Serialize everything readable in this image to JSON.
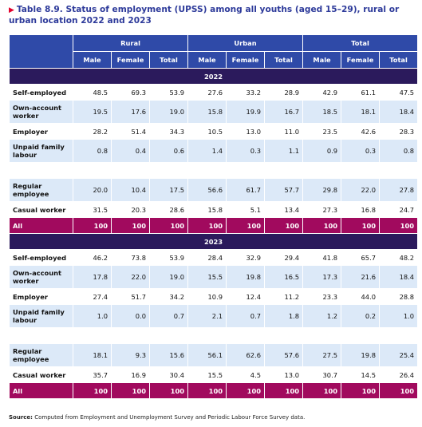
{
  "title": "Table 8.9. Status of employment (UPSS) among all youths (aged 15–29), rural or urban location 2022 and 2023",
  "columns": {
    "groups": [
      "Rural",
      "Urban",
      "Total"
    ],
    "sub": [
      "Male",
      "Female",
      "Total"
    ]
  },
  "sections": [
    {
      "year": "2022",
      "rows": [
        {
          "label": "Self-employed",
          "values": [
            "48.5",
            "69.3",
            "53.9",
            "27.6",
            "33.2",
            "28.9",
            "42.9",
            "61.1",
            "47.5"
          ]
        },
        {
          "label": "Own-account worker",
          "values": [
            "19.5",
            "17.6",
            "19.0",
            "15.8",
            "19.9",
            "16.7",
            "18.5",
            "18.1",
            "18.4"
          ]
        },
        {
          "label": "Employer",
          "values": [
            "28.2",
            "51.4",
            "34.3",
            "10.5",
            "13.0",
            "11.0",
            "23.5",
            "42.6",
            "28.3"
          ]
        },
        {
          "label": "Unpaid family labour",
          "values": [
            "0.8",
            "0.4",
            "0.6",
            "1.4",
            "0.3",
            "1.1",
            "0.9",
            "0.3",
            "0.8"
          ]
        },
        {
          "label": "",
          "values": [
            "",
            "",
            "",
            "",
            "",
            "",
            "",
            "",
            ""
          ]
        },
        {
          "label": "Regular employee",
          "values": [
            "20.0",
            "10.4",
            "17.5",
            "56.6",
            "61.7",
            "57.7",
            "29.8",
            "22.0",
            "27.8"
          ]
        },
        {
          "label": "Casual worker",
          "values": [
            "31.5",
            "20.3",
            "28.6",
            "15.8",
            "5.1",
            "13.4",
            "27.3",
            "16.8",
            "24.7"
          ]
        }
      ],
      "all": {
        "label": "All",
        "values": [
          "100",
          "100",
          "100",
          "100",
          "100",
          "100",
          "100",
          "100",
          "100"
        ]
      }
    },
    {
      "year": "2023",
      "rows": [
        {
          "label": "Self-employed",
          "values": [
            "46.2",
            "73.8",
            "53.9",
            "28.4",
            "32.9",
            "29.4",
            "41.8",
            "65.7",
            "48.2"
          ]
        },
        {
          "label": "Own-account worker",
          "values": [
            "17.8",
            "22.0",
            "19.0",
            "15.5",
            "19.8",
            "16.5",
            "17.3",
            "21.6",
            "18.4"
          ]
        },
        {
          "label": "Employer",
          "values": [
            "27.4",
            "51.7",
            "34.2",
            "10.9",
            "12.4",
            "11.2",
            "23.3",
            "44.0",
            "28.8"
          ]
        },
        {
          "label": "Unpaid family labour",
          "values": [
            "1.0",
            "0.0",
            "0.7",
            "2.1",
            "0.7",
            "1.8",
            "1.2",
            "0.2",
            "1.0"
          ]
        },
        {
          "label": "",
          "values": [
            "",
            "",
            "",
            "",
            "",
            "",
            "",
            "",
            ""
          ]
        },
        {
          "label": "Regular employee",
          "values": [
            "18.1",
            "9.3",
            "15.6",
            "56.1",
            "62.6",
            "57.6",
            "27.5",
            "19.8",
            "25.4"
          ]
        },
        {
          "label": "Casual worker",
          "values": [
            "35.7",
            "16.9",
            "30.4",
            "15.5",
            "4.5",
            "13.0",
            "30.7",
            "14.5",
            "26.4"
          ]
        }
      ],
      "all": {
        "label": "All",
        "values": [
          "100",
          "100",
          "100",
          "100",
          "100",
          "100",
          "100",
          "100",
          "100"
        ]
      }
    }
  ],
  "source": {
    "label": "Source:",
    "text": "Computed from Employment and Unemployment Survey and Periodic Labour Force Survey data."
  }
}
